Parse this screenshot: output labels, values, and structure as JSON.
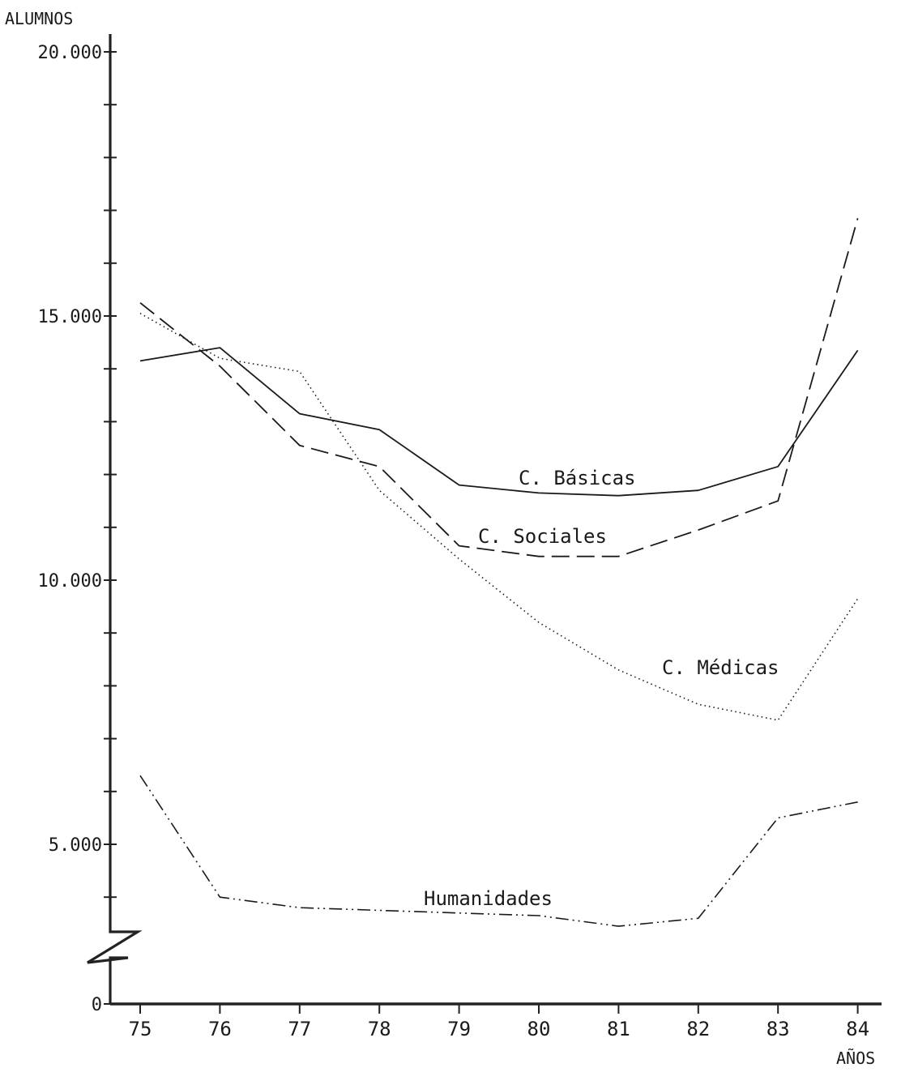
{
  "chart_data": {
    "type": "line",
    "ylabel": "ALUMNOS",
    "xlabel": "AÑOS",
    "x": [
      "75",
      "76",
      "77",
      "78",
      "79",
      "80",
      "81",
      "82",
      "83",
      "84"
    ],
    "y_ticks": [
      "0",
      "5.000",
      "10.000",
      "15.000",
      "20.000"
    ],
    "ylim": [
      0,
      20000
    ],
    "axis_break": true,
    "grid": false,
    "legend": "labels placed next to lines",
    "series": [
      {
        "name": "C. Básicas",
        "style": "solid",
        "values": [
          14150,
          14400,
          13150,
          12850,
          11800,
          11650,
          11600,
          11700,
          12150,
          14350
        ]
      },
      {
        "name": "C. Sociales",
        "style": "dashed",
        "values": [
          15250,
          14050,
          12550,
          12150,
          10650,
          10450,
          10450,
          10950,
          11500,
          16850
        ]
      },
      {
        "name": "C. Médicas",
        "style": "dotted",
        "values": [
          15050,
          14200,
          13950,
          11700,
          10400,
          9200,
          8300,
          7650,
          7350,
          9650
        ]
      },
      {
        "name": "Humanidades",
        "style": "dash-dot-dot",
        "values": [
          6300,
          4000,
          3800,
          3750,
          3700,
          3650,
          3450,
          3600,
          5500,
          5800
        ]
      }
    ]
  }
}
